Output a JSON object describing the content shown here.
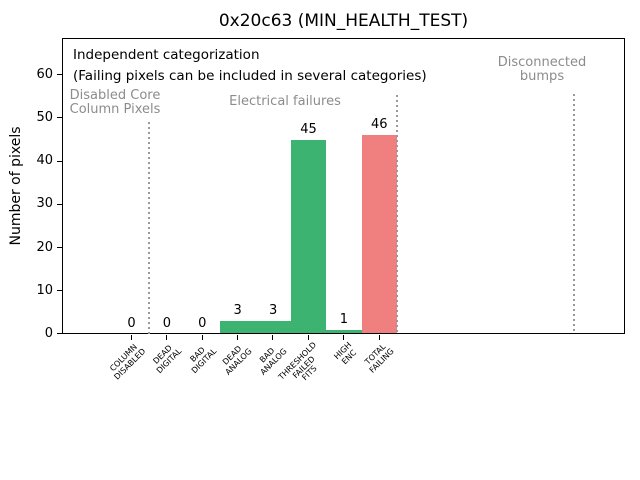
{
  "chart_data": {
    "type": "bar",
    "title": "0x20c63 (MIN_HEALTH_TEST)",
    "ylabel": "Number of pixels",
    "xlabel": "",
    "categories": [
      "COLUMN\nDISABLED",
      "DEAD\nDIGITAL",
      "BAD\nDIGITAL",
      "DEAD\nANALOG",
      "BAD\nANALOG",
      "THRESHOLD\nFAILED\nFITS",
      "HIGH\nENC",
      "TOTAL\nFAILING"
    ],
    "values": [
      0,
      0,
      0,
      3,
      3,
      45,
      1,
      46
    ],
    "bar_value_labels": [
      "0",
      "0",
      "0",
      "3",
      "3",
      "45",
      "1",
      "46"
    ],
    "bar_colors": [
      "#3cb371",
      "#3cb371",
      "#3cb371",
      "#3cb371",
      "#3cb371",
      "#3cb371",
      "#3cb371",
      "#f08080"
    ],
    "yticks": [
      0,
      10,
      20,
      30,
      40,
      50,
      60
    ],
    "ylim": [
      0,
      68.5
    ],
    "xlim": [
      -2,
      14
    ],
    "grid": false,
    "legend": null,
    "annotations": {
      "note": "Independent categorization\n(Failing pixels can be included in several categories)",
      "sections": [
        {
          "label": "Disabled Core\nColumn Pixels"
        },
        {
          "label": "Electrical failures"
        },
        {
          "label": "Disconnected\nbumps"
        }
      ],
      "separator_positions": [
        0.5,
        7.5,
        12.5
      ],
      "section_text_color": "#8c8c8c",
      "separator_color": "#999999"
    },
    "colors": {
      "bar_green": "#3cb371",
      "bar_red": "#f08080",
      "axis": "#000000",
      "background": "#ffffff"
    }
  }
}
